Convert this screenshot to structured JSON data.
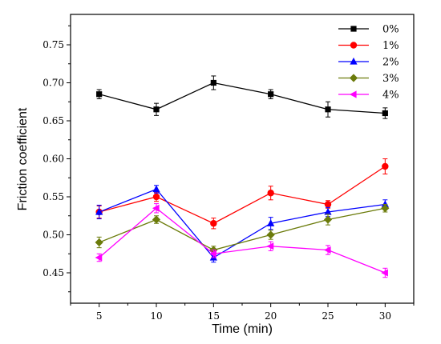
{
  "chart_data": {
    "type": "line",
    "title": "",
    "xlabel": "Time (min)",
    "ylabel": "Friction coefficient",
    "x": [
      5,
      10,
      15,
      20,
      25,
      30
    ],
    "xlim": [
      2.5,
      32.5
    ],
    "ylim": [
      0.41,
      0.79
    ],
    "xticks": [
      5,
      10,
      15,
      20,
      25,
      30
    ],
    "yticks": [
      0.45,
      0.5,
      0.55,
      0.6,
      0.65,
      0.7,
      0.75
    ],
    "ytick_labels": [
      "0.45",
      "0.50",
      "0.55",
      "0.60",
      "0.65",
      "0.70",
      "0.75"
    ],
    "grid": false,
    "legend_position": "top-right",
    "series": [
      {
        "name": "0%",
        "color": "#000000",
        "marker": "square",
        "values": [
          0.685,
          0.665,
          0.7,
          0.685,
          0.665,
          0.66
        ],
        "errors": [
          0.006,
          0.008,
          0.009,
          0.006,
          0.01,
          0.007
        ]
      },
      {
        "name": "1%",
        "color": "#ff0000",
        "marker": "circle",
        "values": [
          0.53,
          0.55,
          0.515,
          0.555,
          0.54,
          0.59
        ],
        "errors": [
          0.008,
          0.006,
          0.007,
          0.009,
          0.005,
          0.01
        ]
      },
      {
        "name": "2%",
        "color": "#0000ff",
        "marker": "triangle-up",
        "values": [
          0.53,
          0.56,
          0.47,
          0.515,
          0.53,
          0.54
        ],
        "errors": [
          0.009,
          0.005,
          0.006,
          0.008,
          0.006,
          0.006
        ]
      },
      {
        "name": "3%",
        "color": "#6b7b0a",
        "marker": "diamond",
        "values": [
          0.49,
          0.52,
          0.48,
          0.5,
          0.52,
          0.535
        ],
        "errors": [
          0.007,
          0.005,
          0.005,
          0.006,
          0.007,
          0.005
        ]
      },
      {
        "name": "4%",
        "color": "#ff00ff",
        "marker": "triangle-left",
        "values": [
          0.47,
          0.535,
          0.475,
          0.485,
          0.48,
          0.45
        ],
        "errors": [
          0.005,
          0.006,
          0.005,
          0.006,
          0.006,
          0.006
        ]
      }
    ]
  }
}
